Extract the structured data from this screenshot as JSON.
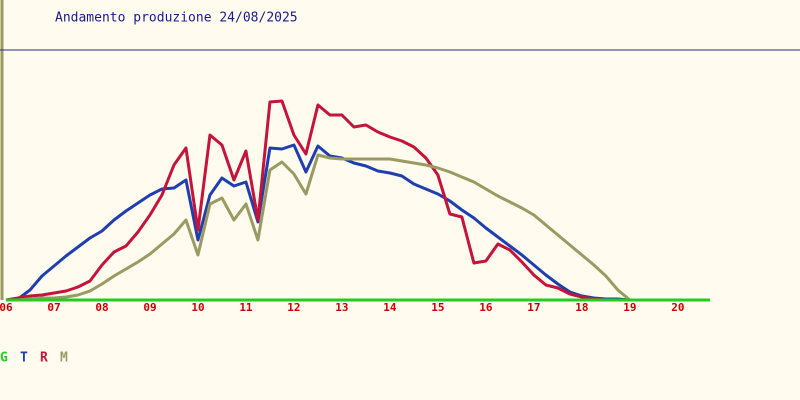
{
  "chart_data": {
    "type": "line",
    "title": "Andamento produzione 24/08/2025",
    "x": [
      6,
      6.25,
      6.5,
      6.75,
      7,
      7.25,
      7.5,
      7.75,
      8,
      8.25,
      8.5,
      8.75,
      9,
      9.25,
      9.5,
      9.75,
      10,
      10.25,
      10.5,
      10.75,
      11,
      11.25,
      11.5,
      11.75,
      12,
      12.25,
      12.5,
      12.75,
      13,
      13.25,
      13.5,
      13.75,
      14,
      14.25,
      14.5,
      14.75,
      15,
      15.25,
      15.5,
      15.75,
      16,
      16.25,
      16.5,
      16.75,
      17,
      17.25,
      17.5,
      17.75,
      18,
      18.25,
      18.5,
      18.75,
      19,
      20.67
    ],
    "xlim": [
      6,
      20.67
    ],
    "xticks": [
      {
        "value": 6,
        "label": "06"
      },
      {
        "value": 7,
        "label": "07"
      },
      {
        "value": 8,
        "label": "08"
      },
      {
        "value": 9,
        "label": "09"
      },
      10,
      11,
      12,
      13,
      14,
      15,
      16,
      17,
      18,
      19,
      20
    ],
    "ylim": [
      0,
      100
    ],
    "series": [
      {
        "name": "T",
        "color": "#1f3fae",
        "values": [
          0,
          0.4,
          4,
          9.6,
          13.6,
          17.6,
          21.2,
          24.8,
          27.6,
          32,
          35.6,
          38.8,
          42,
          44.4,
          44.8,
          48,
          24,
          42,
          48.8,
          45.6,
          47.2,
          31.2,
          60.8,
          60.4,
          62,
          51.2,
          61.6,
          57.6,
          56.8,
          54.8,
          53.6,
          51.6,
          50.8,
          49.6,
          46.4,
          44.4,
          42.4,
          39.6,
          36,
          32.8,
          28.8,
          25.2,
          21.6,
          18,
          14,
          10,
          6.4,
          3.2,
          1.6,
          0.8,
          0.4,
          0.4,
          0,
          0
        ]
      },
      {
        "name": "R",
        "color": "#c4143c",
        "values": [
          0,
          0.8,
          1.6,
          2,
          2.8,
          3.6,
          5.2,
          7.6,
          14,
          19.2,
          21.6,
          27.2,
          34,
          42,
          54,
          60.8,
          28,
          66,
          62,
          48,
          59.6,
          32,
          79.2,
          79.6,
          66,
          58.4,
          78,
          74,
          74,
          69.2,
          70,
          67.2,
          65.2,
          63.6,
          61.2,
          56.8,
          50,
          34.4,
          33.2,
          14.8,
          15.6,
          22.4,
          20,
          15.2,
          10,
          6,
          4.8,
          2.4,
          1.2,
          0.4,
          0,
          0,
          0,
          0
        ]
      },
      {
        "name": "M",
        "color": "#9a9a62",
        "values": [
          0,
          0,
          0.4,
          0.8,
          0.8,
          1.2,
          2,
          3.6,
          6.4,
          9.6,
          12.4,
          15.2,
          18.4,
          22.4,
          26.4,
          32,
          18,
          38.4,
          40.8,
          32,
          38.4,
          24,
          52,
          55.2,
          50.4,
          42.4,
          58,
          56.8,
          56.4,
          56.4,
          56.4,
          56.4,
          56.4,
          55.6,
          54.8,
          54,
          52.8,
          51.2,
          49.2,
          47.2,
          44.4,
          41.6,
          39.2,
          36.8,
          34,
          30,
          26,
          22,
          18,
          14,
          9.6,
          4,
          0,
          0
        ]
      },
      {
        "name": "G",
        "color": "#22cc22",
        "values": [
          0,
          0,
          0,
          0,
          0,
          0,
          0,
          0,
          0,
          0,
          0,
          0,
          0,
          0,
          0,
          0,
          0,
          0,
          0,
          0,
          0,
          0,
          0,
          0,
          0,
          0,
          0,
          0,
          0,
          0,
          0,
          0,
          0,
          0,
          0,
          0,
          0,
          0,
          0,
          0,
          0,
          0,
          0,
          0,
          0,
          0,
          0,
          0,
          0,
          0,
          0,
          0,
          0,
          0
        ]
      }
    ],
    "legend_order": [
      "G",
      "T",
      "R",
      "M"
    ]
  }
}
